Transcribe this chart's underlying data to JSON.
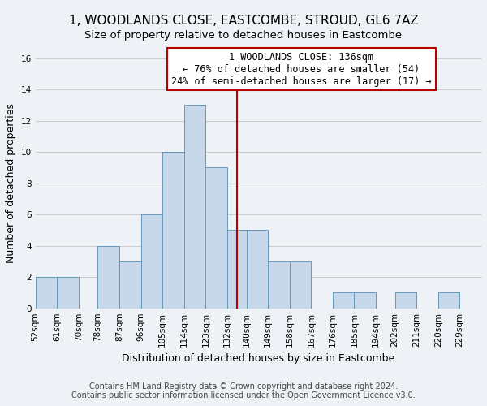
{
  "title": "1, WOODLANDS CLOSE, EASTCOMBE, STROUD, GL6 7AZ",
  "subtitle": "Size of property relative to detached houses in Eastcombe",
  "xlabel": "Distribution of detached houses by size in Eastcombe",
  "ylabel": "Number of detached properties",
  "bin_labels": [
    "52sqm",
    "61sqm",
    "70sqm",
    "78sqm",
    "87sqm",
    "96sqm",
    "105sqm",
    "114sqm",
    "123sqm",
    "132sqm",
    "140sqm",
    "149sqm",
    "158sqm",
    "167sqm",
    "176sqm",
    "185sqm",
    "194sqm",
    "202sqm",
    "211sqm",
    "220sqm",
    "229sqm"
  ],
  "bin_edges": [
    52,
    61,
    70,
    78,
    87,
    96,
    105,
    114,
    123,
    132,
    140,
    149,
    158,
    167,
    176,
    185,
    194,
    202,
    211,
    220,
    229
  ],
  "counts": [
    2,
    2,
    0,
    4,
    3,
    6,
    10,
    13,
    9,
    5,
    5,
    3,
    3,
    0,
    1,
    1,
    0,
    1,
    0,
    1
  ],
  "bar_color": "#c8d8eb",
  "bar_edge_color": "#6699bb",
  "property_size": 136,
  "vline_color": "#bb0000",
  "annotation_title": "1 WOODLANDS CLOSE: 136sqm",
  "annotation_line1": "← 76% of detached houses are smaller (54)",
  "annotation_line2": "24% of semi-detached houses are larger (17) →",
  "annotation_box_color": "#ffffff",
  "annotation_box_edge_color": "#bb0000",
  "ylim": [
    0,
    16
  ],
  "yticks": [
    0,
    2,
    4,
    6,
    8,
    10,
    12,
    14,
    16
  ],
  "footer_line1": "Contains HM Land Registry data © Crown copyright and database right 2024.",
  "footer_line2": "Contains public sector information licensed under the Open Government Licence v3.0.",
  "title_fontsize": 11,
  "subtitle_fontsize": 9.5,
  "axis_label_fontsize": 9,
  "tick_fontsize": 7.5,
  "footer_fontsize": 7,
  "annotation_fontsize": 8.5,
  "background_color": "#eef2f7",
  "grid_color": "#cccccc"
}
